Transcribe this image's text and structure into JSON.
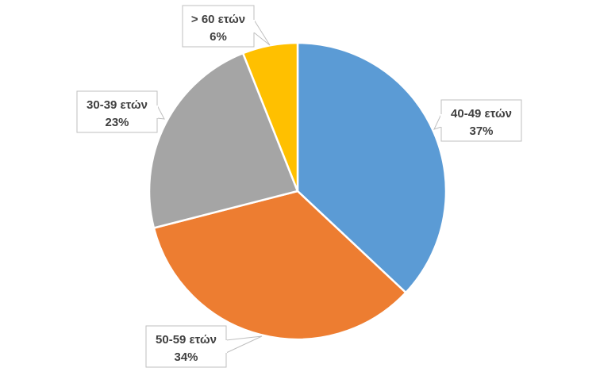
{
  "chart_data": {
    "type": "pie",
    "categories": [
      "40-49 ετών",
      "50-59 ετών",
      "30-39 ετών",
      "> 60 ετών"
    ],
    "values": [
      37,
      34,
      23,
      6
    ],
    "value_labels": [
      "37%",
      "34%",
      "23%",
      "6%"
    ],
    "colors": [
      "#5b9bd5",
      "#ed7d31",
      "#a5a5a5",
      "#ffc000"
    ],
    "legend": "none"
  }
}
